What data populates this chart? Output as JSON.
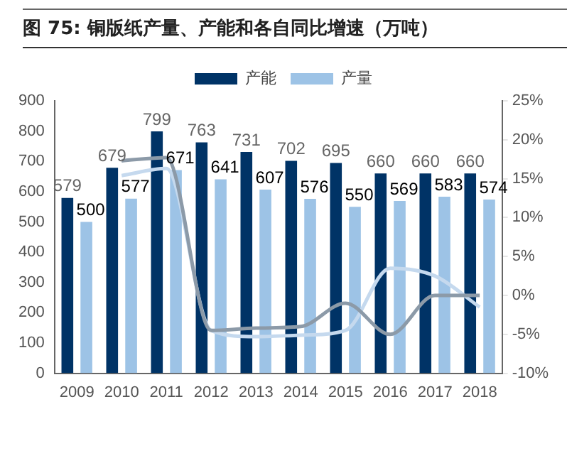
{
  "chart_data": {
    "type": "bar",
    "title": "图 75: 铜版纸产量、产能和各自同比增速（万吨）",
    "categories": [
      "2009",
      "2010",
      "2011",
      "2012",
      "2013",
      "2014",
      "2015",
      "2016",
      "2017",
      "2018"
    ],
    "series": [
      {
        "name": "产能",
        "color": "#003366",
        "values": [
          579,
          679,
          799,
          763,
          731,
          702,
          695,
          660,
          660,
          660
        ],
        "value_labels": [
          "579",
          "679",
          "799",
          "763",
          "731",
          "702",
          "695",
          "660",
          "660",
          "660"
        ]
      },
      {
        "name": "产量",
        "color": "#9dc3e6",
        "values": [
          500,
          577,
          671,
          641,
          607,
          576,
          550,
          569,
          583,
          574
        ],
        "value_labels": [
          "500",
          "577",
          "671",
          "641",
          "607",
          "576",
          "550",
          "569",
          "583",
          "574"
        ]
      },
      {
        "type": "line",
        "axis": "y2",
        "color": "#8c9aa8",
        "values": [
          null,
          17.3,
          17.7,
          -4.5,
          -4.2,
          -4.0,
          -1.0,
          -5.0,
          0,
          0
        ]
      },
      {
        "type": "line",
        "axis": "y2",
        "color": "#c5d9ee",
        "values": [
          null,
          15.4,
          16.3,
          -4.5,
          -5.3,
          -5.1,
          -4.5,
          3.5,
          2.5,
          -1.5
        ]
      }
    ],
    "ylim": [
      0,
      900
    ],
    "yticks": [
      0,
      100,
      200,
      300,
      400,
      500,
      600,
      700,
      800,
      900
    ],
    "y2lim": [
      -10,
      25
    ],
    "y2ticks": [
      {
        "value": -10,
        "label": "-10%"
      },
      {
        "value": -5,
        "label": "-5%"
      },
      {
        "value": 0,
        "label": "0%"
      },
      {
        "value": 5,
        "label": "5%"
      },
      {
        "value": 10,
        "label": "10%"
      },
      {
        "value": 15,
        "label": "15%"
      },
      {
        "value": 20,
        "label": "20%"
      },
      {
        "value": 25,
        "label": "25%"
      }
    ],
    "legend": "top",
    "grid": false
  }
}
